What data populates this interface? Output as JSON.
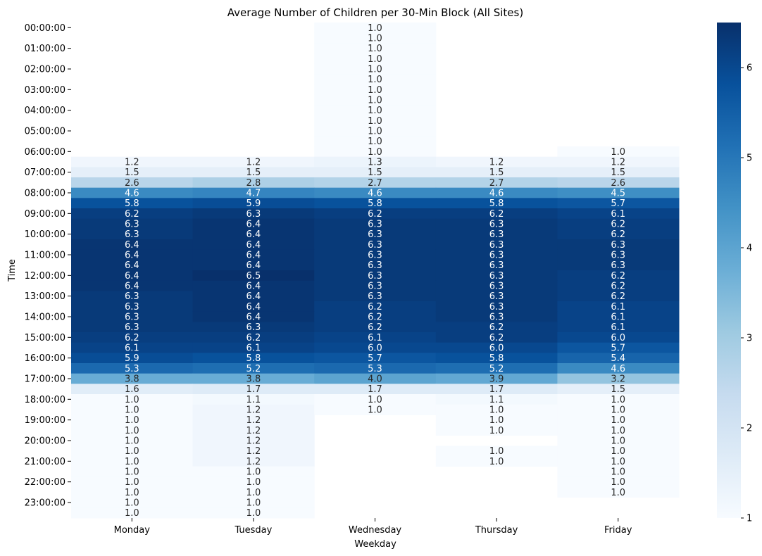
{
  "chart_data": {
    "type": "heatmap",
    "title": "Average Number of Children per 30-Min Block (All Sites)",
    "xlabel": "Weekday",
    "ylabel": "Time",
    "x_categories": [
      "Monday",
      "Tuesday",
      "Wednesday",
      "Thursday",
      "Friday"
    ],
    "y_categories": [
      "00:00:00",
      "00:30:00",
      "01:00:00",
      "01:30:00",
      "02:00:00",
      "02:30:00",
      "03:00:00",
      "03:30:00",
      "04:00:00",
      "04:30:00",
      "05:00:00",
      "05:30:00",
      "06:00:00",
      "06:30:00",
      "07:00:00",
      "07:30:00",
      "08:00:00",
      "08:30:00",
      "09:00:00",
      "09:30:00",
      "10:00:00",
      "10:30:00",
      "11:00:00",
      "11:30:00",
      "12:00:00",
      "12:30:00",
      "13:00:00",
      "13:30:00",
      "14:00:00",
      "14:30:00",
      "15:00:00",
      "15:30:00",
      "16:00:00",
      "16:30:00",
      "17:00:00",
      "17:30:00",
      "18:00:00",
      "18:30:00",
      "19:00:00",
      "19:30:00",
      "20:00:00",
      "20:30:00",
      "21:00:00",
      "21:30:00",
      "22:00:00",
      "22:30:00",
      "23:00:00",
      "23:30:00"
    ],
    "y_tick_labels": [
      "00:00:00",
      "01:00:00",
      "02:00:00",
      "03:00:00",
      "04:00:00",
      "05:00:00",
      "06:00:00",
      "07:00:00",
      "08:00:00",
      "09:00:00",
      "10:00:00",
      "11:00:00",
      "12:00:00",
      "13:00:00",
      "14:00:00",
      "15:00:00",
      "16:00:00",
      "17:00:00",
      "18:00:00",
      "19:00:00",
      "20:00:00",
      "21:00:00",
      "22:00:00",
      "23:00:00"
    ],
    "values": [
      [
        null,
        null,
        1.0,
        null,
        null
      ],
      [
        null,
        null,
        1.0,
        null,
        null
      ],
      [
        null,
        null,
        1.0,
        null,
        null
      ],
      [
        null,
        null,
        1.0,
        null,
        null
      ],
      [
        null,
        null,
        1.0,
        null,
        null
      ],
      [
        null,
        null,
        1.0,
        null,
        null
      ],
      [
        null,
        null,
        1.0,
        null,
        null
      ],
      [
        null,
        null,
        1.0,
        null,
        null
      ],
      [
        null,
        null,
        1.0,
        null,
        null
      ],
      [
        null,
        null,
        1.0,
        null,
        null
      ],
      [
        null,
        null,
        1.0,
        null,
        null
      ],
      [
        null,
        null,
        1.0,
        null,
        null
      ],
      [
        null,
        null,
        1.0,
        null,
        1.0
      ],
      [
        1.2,
        1.2,
        1.3,
        1.2,
        1.2
      ],
      [
        1.5,
        1.5,
        1.5,
        1.5,
        1.5
      ],
      [
        2.6,
        2.8,
        2.7,
        2.7,
        2.6
      ],
      [
        4.6,
        4.7,
        4.6,
        4.6,
        4.5
      ],
      [
        5.8,
        5.9,
        5.8,
        5.8,
        5.7
      ],
      [
        6.2,
        6.3,
        6.2,
        6.2,
        6.1
      ],
      [
        6.3,
        6.4,
        6.3,
        6.3,
        6.2
      ],
      [
        6.3,
        6.4,
        6.3,
        6.3,
        6.2
      ],
      [
        6.4,
        6.4,
        6.3,
        6.3,
        6.3
      ],
      [
        6.4,
        6.4,
        6.3,
        6.3,
        6.3
      ],
      [
        6.4,
        6.4,
        6.3,
        6.3,
        6.3
      ],
      [
        6.4,
        6.5,
        6.3,
        6.3,
        6.2
      ],
      [
        6.4,
        6.4,
        6.3,
        6.3,
        6.2
      ],
      [
        6.3,
        6.4,
        6.3,
        6.3,
        6.2
      ],
      [
        6.3,
        6.4,
        6.2,
        6.3,
        6.1
      ],
      [
        6.3,
        6.4,
        6.2,
        6.3,
        6.1
      ],
      [
        6.3,
        6.3,
        6.2,
        6.2,
        6.1
      ],
      [
        6.2,
        6.2,
        6.1,
        6.2,
        6.0
      ],
      [
        6.1,
        6.1,
        6.0,
        6.0,
        5.7
      ],
      [
        5.9,
        5.8,
        5.7,
        5.8,
        5.4
      ],
      [
        5.3,
        5.2,
        5.3,
        5.2,
        4.6
      ],
      [
        3.8,
        3.8,
        4.0,
        3.9,
        3.2
      ],
      [
        1.6,
        1.7,
        1.7,
        1.7,
        1.5
      ],
      [
        1.0,
        1.1,
        1.0,
        1.1,
        1.0
      ],
      [
        1.0,
        1.2,
        1.0,
        1.0,
        1.0
      ],
      [
        1.0,
        1.2,
        null,
        1.0,
        1.0
      ],
      [
        1.0,
        1.2,
        null,
        1.0,
        1.0
      ],
      [
        1.0,
        1.2,
        null,
        null,
        1.0
      ],
      [
        1.0,
        1.2,
        null,
        1.0,
        1.0
      ],
      [
        1.0,
        1.2,
        null,
        1.0,
        1.0
      ],
      [
        1.0,
        1.0,
        null,
        null,
        1.0
      ],
      [
        1.0,
        1.0,
        null,
        null,
        1.0
      ],
      [
        1.0,
        1.0,
        null,
        null,
        1.0
      ],
      [
        1.0,
        1.0,
        null,
        null,
        null
      ],
      [
        1.0,
        1.0,
        null,
        null,
        null
      ]
    ],
    "colormap": "Blues",
    "color_range": [
      1,
      6.5
    ],
    "colorbar_ticks": [
      1,
      2,
      3,
      4,
      5,
      6
    ],
    "grid": false,
    "legend": "colorbar-right"
  }
}
